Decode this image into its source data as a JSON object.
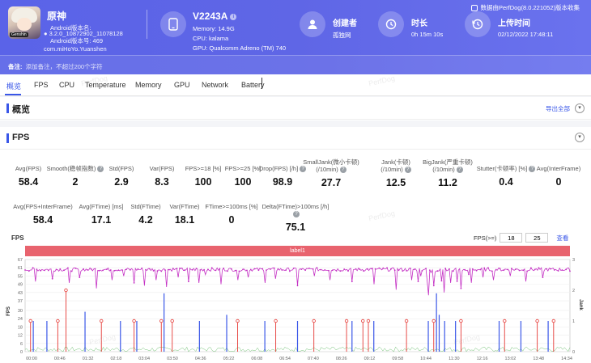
{
  "app": {
    "name": "原神",
    "icon_tag": "Genshin",
    "version_label": "Android版本名:",
    "version_name": "3.2.0_10872902_11078128",
    "version_code": "Android版本号: 469",
    "package": "com.miHoYo.Yuanshen"
  },
  "device": {
    "title": "V2243A",
    "memory": "Memory: 14.9G",
    "cpu": "CPU: kalama",
    "gpu": "GPU: Qualcomm Adreno (TM) 740"
  },
  "creator": {
    "label": "创建者",
    "value": "孤独网"
  },
  "duration": {
    "label": "时长",
    "value": "0h 15m 10s"
  },
  "upload": {
    "label": "上传时间",
    "value": "02/12/2022 17:48:11"
  },
  "export_note": "数据由PerfDog(8.0.221052)版本收集",
  "note": {
    "label": "备注:",
    "placeholder": "添加备注，不超过200个字符"
  },
  "tabs": [
    "概览",
    "FPS",
    "CPU",
    "Temperature",
    "Memory",
    "GPU",
    "Network",
    "Battery"
  ],
  "overview": {
    "title": "概览",
    "action": "导出全部"
  },
  "fps_section": {
    "title": "FPS"
  },
  "stats_row1": [
    {
      "label": "Avg(FPS)",
      "value": "58.4"
    },
    {
      "label": "Smooth(稳帧指数)",
      "value": "2",
      "help": true
    },
    {
      "label": "Std(FPS)",
      "value": "2.9"
    },
    {
      "label": "Var(FPS)",
      "value": "8.3"
    },
    {
      "label": "FPS>=18 [%]",
      "value": "100"
    },
    {
      "label": "FPS>=25 [%]",
      "value": "100"
    },
    {
      "label": "Drop(FPS) [/h]",
      "value": "98.9",
      "help": true
    },
    {
      "label": "SmallJank(微小卡顿)\n(/10min)",
      "value": "27.7",
      "help": true
    },
    {
      "label": "Jank(卡顿)\n(/10min)",
      "value": "12.5",
      "help": true
    },
    {
      "label": "BigJank(严重卡顿)\n(/10min)",
      "value": "11.2",
      "help": true
    },
    {
      "label": "Stutter(卡顿率) [%]",
      "value": "0.4",
      "help": true
    },
    {
      "label": "Avg(InterFrame)",
      "value": "0"
    }
  ],
  "stats_row2": [
    {
      "label": "Avg(FPS+InterFrame)",
      "value": "58.4"
    },
    {
      "label": "Avg(FTime) [ms]",
      "value": "17.1"
    },
    {
      "label": "Std(FTime)",
      "value": "4.2"
    },
    {
      "label": "Var(FTime)",
      "value": "18.1"
    },
    {
      "label": "FTime>=100ms [%]",
      "value": "0"
    },
    {
      "label": "Delta(FTime)>100ms [/h]",
      "value": "75.1",
      "help": true
    }
  ],
  "chart": {
    "title": "FPS",
    "filter_label": "FPS(>=)",
    "filter_min": "18",
    "filter_max": "25",
    "filter_button": "查看",
    "band_label": "label1",
    "y_label": "FPS",
    "y2_label": "Jank",
    "watermark": "PerfDog"
  },
  "chart_data": {
    "type": "line",
    "y_ticks": [
      0,
      6,
      12,
      18,
      24,
      30,
      37,
      43,
      49,
      55,
      61,
      67
    ],
    "y2_ticks": [
      0,
      1,
      2,
      3
    ],
    "x_ticks": [
      "00:00",
      "00:46",
      "01:32",
      "02:18",
      "03:04",
      "03:50",
      "04:36",
      "05:22",
      "06:08",
      "06:54",
      "07:40",
      "08:26",
      "09:12",
      "09:58",
      "10:44",
      "11:30",
      "12:16",
      "13:02",
      "13:48",
      "14:34"
    ],
    "ylim": [
      0,
      67
    ],
    "y2lim": [
      0,
      3
    ],
    "fps_baseline": 60,
    "dips": [
      [
        0.02,
        51
      ],
      [
        0.05,
        53
      ],
      [
        0.08,
        50
      ],
      [
        0.1,
        54
      ],
      [
        0.13,
        46
      ],
      [
        0.16,
        52
      ],
      [
        0.18,
        55
      ],
      [
        0.2,
        50
      ],
      [
        0.22,
        48
      ],
      [
        0.24,
        52
      ],
      [
        0.26,
        47
      ],
      [
        0.28,
        54
      ],
      [
        0.3,
        51
      ],
      [
        0.32,
        50
      ],
      [
        0.33,
        56
      ],
      [
        0.36,
        49
      ],
      [
        0.39,
        52
      ],
      [
        0.41,
        54
      ],
      [
        0.44,
        50
      ],
      [
        0.46,
        53
      ],
      [
        0.5,
        48
      ],
      [
        0.53,
        55
      ],
      [
        0.56,
        52
      ],
      [
        0.6,
        51
      ],
      [
        0.64,
        49
      ],
      [
        0.68,
        45
      ],
      [
        0.71,
        52
      ],
      [
        0.74,
        41
      ],
      [
        0.75,
        48
      ],
      [
        0.77,
        43
      ],
      [
        0.78,
        50
      ],
      [
        0.8,
        46
      ],
      [
        0.82,
        50
      ],
      [
        0.84,
        54
      ],
      [
        0.86,
        52
      ],
      [
        0.89,
        55
      ],
      [
        0.92,
        51
      ],
      [
        0.95,
        54
      ]
    ],
    "red_markers": [
      [
        0.01,
        1
      ],
      [
        0.06,
        1
      ],
      [
        0.075,
        2
      ],
      [
        0.14,
        1
      ],
      [
        0.2,
        1
      ],
      [
        0.25,
        1
      ],
      [
        0.27,
        1
      ],
      [
        0.39,
        1
      ],
      [
        0.46,
        1
      ],
      [
        0.53,
        1
      ],
      [
        0.59,
        1
      ],
      [
        0.62,
        1
      ],
      [
        0.63,
        1
      ],
      [
        0.7,
        1
      ],
      [
        0.75,
        1
      ],
      [
        0.8,
        1
      ],
      [
        0.88,
        1
      ],
      [
        0.94,
        1
      ],
      [
        0.97,
        1
      ]
    ],
    "blue_bars": [
      [
        0.015,
        1
      ],
      [
        0.04,
        1
      ],
      [
        0.11,
        1.3
      ],
      [
        0.175,
        1
      ],
      [
        0.205,
        1
      ],
      [
        0.255,
        1.9
      ],
      [
        0.32,
        1
      ],
      [
        0.37,
        1.2
      ],
      [
        0.44,
        1
      ],
      [
        0.5,
        1
      ],
      [
        0.6,
        1
      ],
      [
        0.64,
        1
      ],
      [
        0.74,
        1
      ],
      [
        0.755,
        1.9
      ],
      [
        0.76,
        1.2
      ],
      [
        0.77,
        1
      ],
      [
        0.79,
        1
      ],
      [
        0.87,
        1
      ],
      [
        0.91,
        1
      ],
      [
        0.96,
        1
      ]
    ]
  }
}
